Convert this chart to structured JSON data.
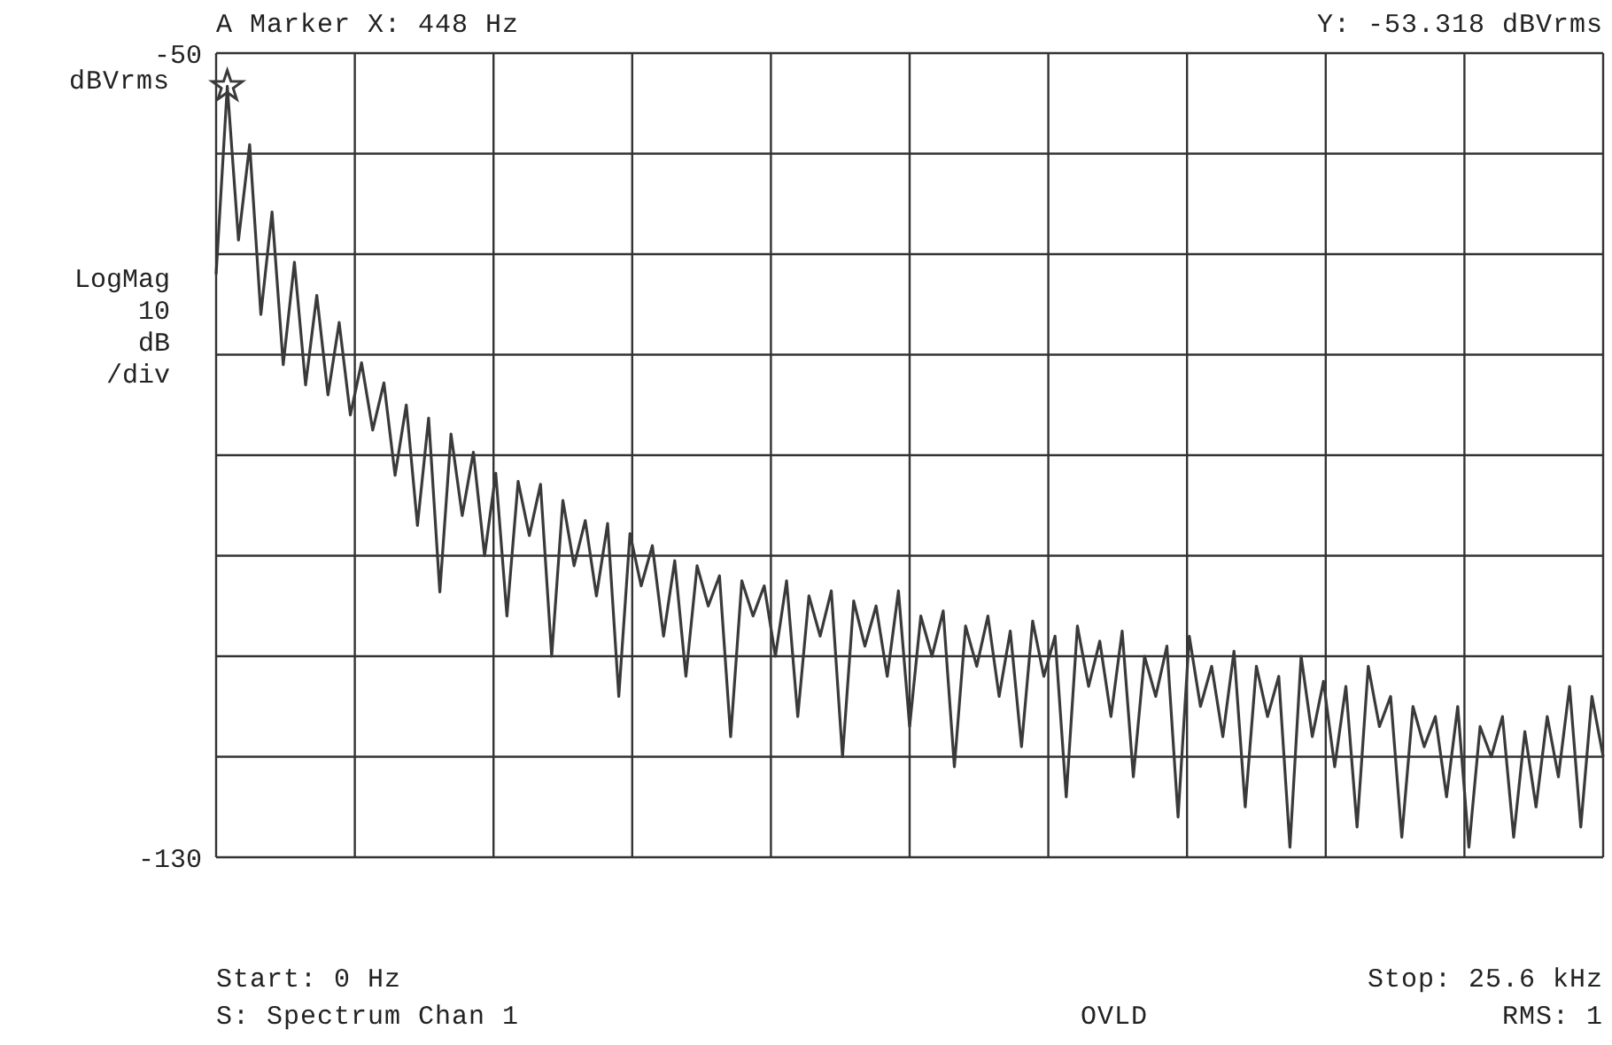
{
  "chart_data": {
    "type": "line",
    "ylabel": "LogMag 10 dB /div",
    "ylim": [
      -130,
      -50
    ],
    "yticks": [
      -50,
      {
        "value": -60,
        "label": null
      },
      {
        "value": -70,
        "label": null
      },
      {
        "value": -80,
        "label": null
      },
      {
        "value": -90,
        "label": null
      },
      {
        "value": -100,
        "label": null
      },
      {
        "value": -110,
        "label": null
      },
      {
        "value": -120,
        "label": null
      },
      -130
    ],
    "tick_labels": "y",
    "grid": true,
    "marker": "none",
    "line_style": "solid",
    "annotations": [
      "A Marker X: 448 Hz",
      "Y: -53.318 dBVrms",
      "dBVrms",
      "Start: 0 Hz",
      "S: Spectrum Chan 1",
      "OVLD",
      "Stop: 25.6 kHz",
      "RMS: 1"
    ],
    "categories": [
      null,
      null,
      null,
      null,
      null,
      null,
      null,
      null,
      null,
      null,
      null,
      null,
      null,
      null,
      null,
      null,
      null,
      null,
      null,
      null,
      null,
      null,
      null,
      null,
      null,
      null,
      null,
      null,
      null,
      null,
      null,
      null,
      null,
      null,
      null,
      null,
      null,
      null,
      null,
      null,
      null,
      null,
      null,
      null,
      null,
      null,
      null,
      null,
      null,
      null,
      null,
      null,
      null,
      null,
      null,
      null,
      null,
      null,
      null,
      null,
      null,
      null,
      null,
      null,
      null,
      null,
      null,
      null,
      null,
      null,
      null,
      null,
      null,
      null,
      null,
      null,
      null,
      null,
      null,
      null,
      null,
      null,
      null,
      null,
      null,
      null,
      null,
      null,
      null,
      null,
      null,
      null,
      null,
      null,
      null,
      null,
      null,
      null,
      null,
      null,
      null,
      null,
      null,
      null,
      null,
      null,
      null,
      null,
      null,
      null,
      null,
      null,
      null,
      null,
      null,
      null,
      null,
      null,
      null,
      null,
      null,
      null,
      null,
      null,
      null
    ],
    "series": [
      {
        "color": "#3a3a3a",
        "values": [
          -72,
          -53.3,
          -68.6,
          -59.1,
          -76,
          -65.8,
          -81,
          -70.8,
          -83,
          -74.1,
          -84,
          -76.8,
          -86,
          -80.8,
          -87.5,
          -82.8,
          -92,
          -85.0,
          -97,
          -86.3,
          -103.6,
          -87.9,
          -96,
          -89.7,
          -100,
          -91.8,
          -106,
          -92.6,
          -98,
          -92.9,
          -110,
          -94.5,
          -101,
          -96.5,
          -104,
          -96.8,
          -114,
          -97.8,
          -103,
          -99.0,
          -108,
          -100.5,
          -112,
          -101,
          -105,
          -102,
          -118,
          -102.5,
          -106,
          -103,
          -110,
          -102.5,
          -116,
          -104,
          -108,
          -103.5,
          -120,
          -104.5,
          -109,
          -105,
          -112,
          -103.5,
          -117,
          -106,
          -110,
          -105.5,
          -121,
          -107,
          -111,
          -106,
          -114,
          -107.5,
          -119,
          -106.5,
          -112,
          -108,
          -124,
          -107,
          -113,
          -108.5,
          -116,
          -107.5,
          -122,
          -110,
          -114,
          -109,
          -126,
          -108,
          -115,
          -111,
          -118,
          -109.5,
          -125,
          -111,
          -116,
          -112,
          -129,
          -110,
          -118,
          -112.5,
          -121,
          -113,
          -127,
          -111,
          -117,
          -114,
          -128,
          -115,
          -119,
          -116,
          -124,
          -115,
          -129,
          -117,
          -120,
          -116,
          -128,
          -117.5,
          -125,
          -116,
          -122,
          -113,
          -127,
          -114,
          -120
        ]
      }
    ]
  }
}
